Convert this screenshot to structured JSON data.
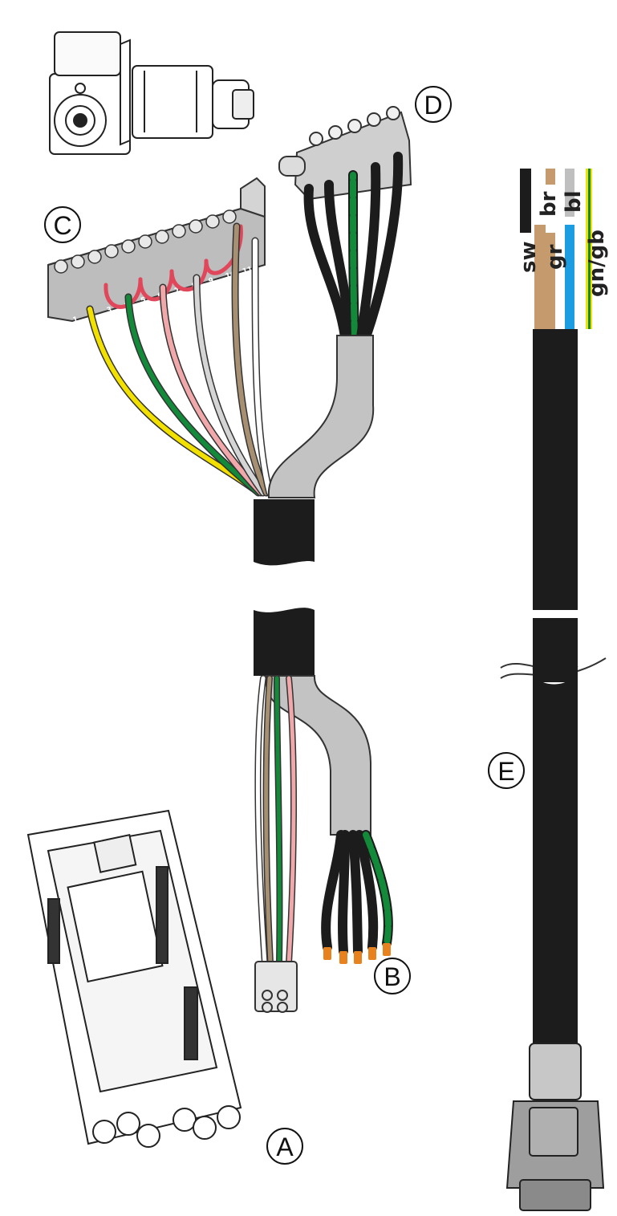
{
  "callouts": {
    "a": "A",
    "b": "B",
    "c": "C",
    "d": "D",
    "e": "E"
  },
  "cable_e_wire_labels": {
    "sw": "sw",
    "br": "br",
    "gr": "gr",
    "bl": "bl",
    "gngb": "gn/gb"
  },
  "terminal_block_c_numbers": [
    "1",
    "2",
    "3",
    "4",
    "5",
    "6",
    "7",
    "8",
    "9",
    "10",
    "11"
  ],
  "colors": {
    "cable_black": "#1c1c1c",
    "jacket_grey": "#c3c3c3",
    "wire_yellow": "#f2e000",
    "wire_green": "#13893a",
    "wire_pink": "#f0a8aa",
    "wire_white": "#ffffff",
    "wire_brown": "#a78f72",
    "wire_grey": "#bfbfbf",
    "bridge_red": "#e0475a",
    "ferrule_orange": "#e8821e",
    "wire_blue": "#1c9de2",
    "wire_brown_e": "#c59a6c"
  }
}
